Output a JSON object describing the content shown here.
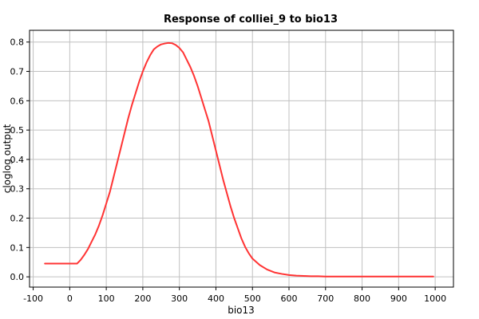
{
  "chart_data": {
    "type": "line",
    "title": "Response of colliei_9 to bio13",
    "xlabel": "bio13",
    "ylabel": "cloglog output",
    "xlim": [
      -110,
      1050
    ],
    "ylim": [
      -0.035,
      0.84
    ],
    "x_ticks": [
      -100,
      0,
      100,
      200,
      300,
      400,
      500,
      600,
      700,
      800,
      900,
      1000
    ],
    "x_tick_labels": [
      "-100",
      "0",
      "100",
      "200",
      "300",
      "400",
      "500",
      "600",
      "700",
      "800",
      "900",
      "1000"
    ],
    "y_ticks": [
      0.0,
      0.1,
      0.2,
      0.3,
      0.4,
      0.5,
      0.6,
      0.7,
      0.8
    ],
    "y_tick_labels": [
      "0.0",
      "0.1",
      "0.2",
      "0.3",
      "0.4",
      "0.5",
      "0.6",
      "0.7",
      "0.8"
    ],
    "grid": true,
    "series": [
      {
        "color": "#ff3333",
        "x": [
          -68,
          0,
          20,
          30,
          40,
          50,
          60,
          70,
          80,
          90,
          100,
          110,
          120,
          130,
          140,
          150,
          160,
          170,
          180,
          190,
          200,
          210,
          220,
          230,
          240,
          250,
          260,
          270,
          280,
          290,
          300,
          310,
          320,
          330,
          340,
          350,
          360,
          370,
          380,
          390,
          400,
          410,
          420,
          430,
          440,
          450,
          460,
          470,
          480,
          490,
          500,
          520,
          540,
          560,
          580,
          600,
          620,
          640,
          660,
          680,
          700,
          750,
          800,
          850,
          900,
          950,
          995
        ],
        "y": [
          0.045,
          0.045,
          0.045,
          0.058,
          0.075,
          0.095,
          0.12,
          0.145,
          0.175,
          0.21,
          0.25,
          0.29,
          0.34,
          0.39,
          0.44,
          0.49,
          0.54,
          0.585,
          0.625,
          0.665,
          0.7,
          0.73,
          0.755,
          0.775,
          0.785,
          0.792,
          0.795,
          0.797,
          0.796,
          0.79,
          0.78,
          0.765,
          0.74,
          0.715,
          0.685,
          0.65,
          0.61,
          0.57,
          0.53,
          0.48,
          0.43,
          0.38,
          0.33,
          0.285,
          0.24,
          0.2,
          0.165,
          0.13,
          0.102,
          0.08,
          0.062,
          0.04,
          0.025,
          0.015,
          0.01,
          0.006,
          0.004,
          0.003,
          0.002,
          0.002,
          0.001,
          0.001,
          0.001,
          0.001,
          0.001,
          0.001,
          0.001
        ]
      }
    ]
  }
}
